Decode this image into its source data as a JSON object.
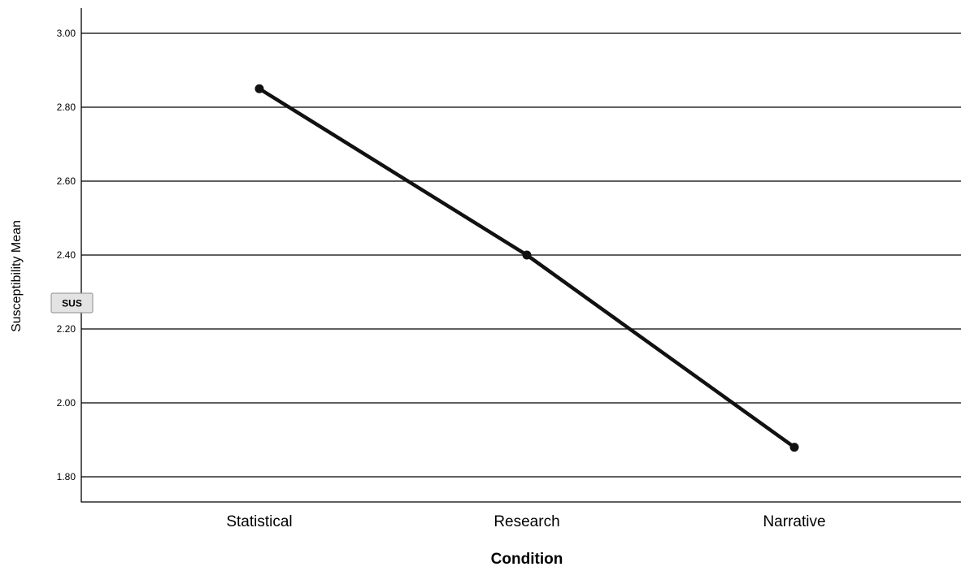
{
  "chart_data": {
    "type": "line",
    "title": "",
    "xlabel": "Condition",
    "ylabel": "Susceptibility Mean",
    "categories": [
      "Statistical",
      "Research",
      "Narrative"
    ],
    "values": [
      2.85,
      2.4,
      1.88
    ],
    "ylim": [
      1.73,
      3.07
    ],
    "yticks": [
      "1.80",
      "2.00",
      "2.20",
      "2.40",
      "2.60",
      "2.80",
      "3.00"
    ],
    "ytick_values": [
      1.8,
      2.0,
      2.2,
      2.4,
      2.6,
      2.8,
      3.0
    ],
    "grid": true,
    "series_color": "#111111"
  },
  "badge": {
    "label": "SUS"
  }
}
